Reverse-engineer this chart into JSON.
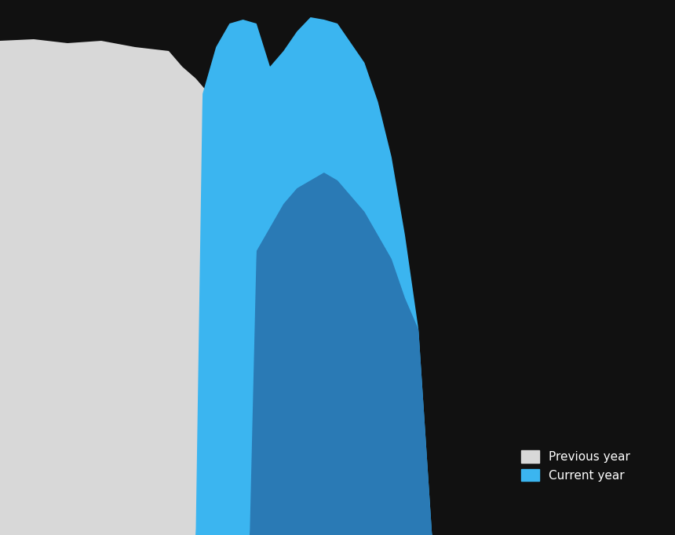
{
  "background_color": "#111111",
  "series1_color": "#d8d8d8",
  "series2_light_color": "#3bb5f0",
  "series2_dark_color": "#2a7ab5",
  "legend_label1": "Previous year",
  "legend_label2": "Current year",
  "legend_color": "#ffffff",
  "legend_fontsize": 11,
  "fig_width": 8.6,
  "fig_height": 6.82,
  "dpi": 100
}
